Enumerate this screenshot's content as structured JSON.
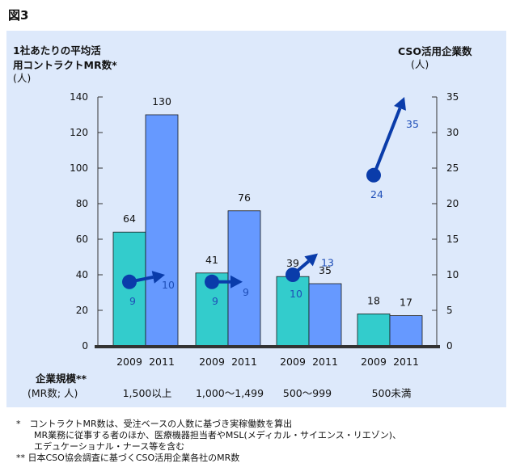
{
  "figure_label": "図3",
  "chart_data": {
    "type": "bar",
    "left_axis_title_line1": "1社あたりの平均活",
    "left_axis_title_line2": "用コントラクトMR数*",
    "left_axis_unit": "(人)",
    "right_axis_title": "CSO活用企業数",
    "right_axis_unit": "(人)",
    "ylim_left": [
      0,
      140
    ],
    "yticks_left": [
      0,
      20,
      40,
      60,
      80,
      100,
      120,
      140
    ],
    "ylim_right": [
      0,
      35
    ],
    "yticks_right": [
      0,
      5,
      10,
      15,
      20,
      25,
      30,
      35
    ],
    "x_title": "企業規模**",
    "x_subtitle": "(MR数; 人)",
    "groups": [
      "1,500以上",
      "1,000〜1,499",
      "500〜999",
      "500未満"
    ],
    "years": [
      "2009",
      "2011"
    ],
    "series": [
      {
        "values": [
          64,
          41,
          39,
          18
        ],
        "color": "#33cccc"
      },
      {
        "values": [
          130,
          76,
          35,
          17
        ],
        "color": "#6699ff"
      }
    ],
    "companies": {
      "2009": [
        9,
        9,
        10,
        24
      ],
      "2011": [
        10,
        9,
        13,
        35
      ],
      "color": "#0a3caa",
      "label_color": "#1f4fb8"
    },
    "grid": false,
    "legend": "none"
  },
  "notes": [
    "*　コントラクトMR数は、受注ベースの人数に基づき実稼働数を算出",
    "　　MR業務に従事する者のほか、医療機器担当者やMSL(メディカル・サイエンス・リエゾン)、",
    "　　エデュケーショナル・ナース等を含む",
    "** 日本CSO協会調査に基づくCSO活用企業各社のMR数"
  ]
}
